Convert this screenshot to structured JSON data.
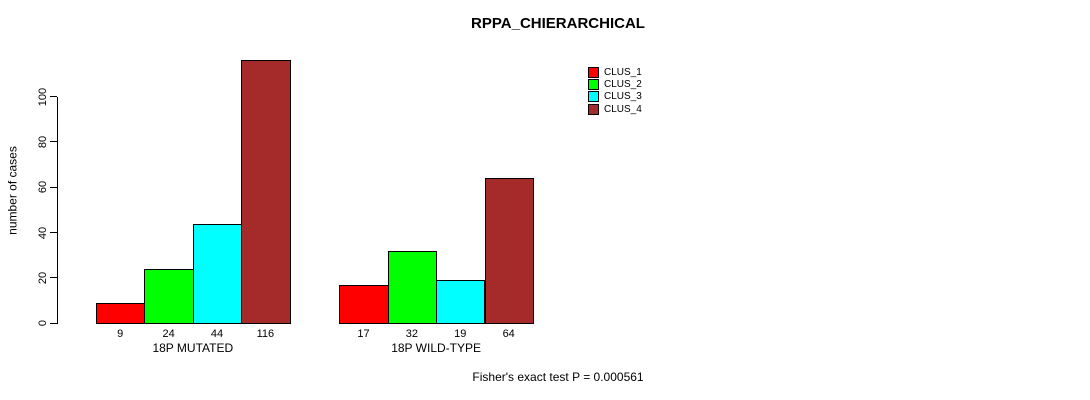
{
  "chart_data": {
    "type": "bar",
    "title": "RPPA_CHIERARCHICAL",
    "ylabel": "number of cases",
    "xlabel": "",
    "categories": [
      "18P MUTATED",
      "18P WILD-TYPE"
    ],
    "series": [
      {
        "name": "CLUS_1",
        "color": "#FF0000",
        "values": [
          9,
          17
        ]
      },
      {
        "name": "CLUS_2",
        "color": "#00FF00",
        "values": [
          24,
          32
        ]
      },
      {
        "name": "CLUS_3",
        "color": "#00FFFF",
        "values": [
          44,
          19
        ]
      },
      {
        "name": "CLUS_4",
        "color": "#A52A2A",
        "values": [
          116,
          64
        ]
      }
    ],
    "bar_value_labels": [
      [
        9,
        24,
        44,
        116
      ],
      [
        17,
        32,
        19,
        64
      ]
    ],
    "yticks": [
      0,
      20,
      40,
      60,
      80,
      100
    ],
    "ylim": [
      0,
      116
    ],
    "grid": false,
    "legend_position": "top-right",
    "legend_entries": [
      "CLUS_1",
      "CLUS_2",
      "CLUS_3",
      "CLUS_4"
    ],
    "annotation": "Fisher's exact test P = 0.000561",
    "background_color": "#FFFFFF",
    "text_color": "#000000"
  }
}
